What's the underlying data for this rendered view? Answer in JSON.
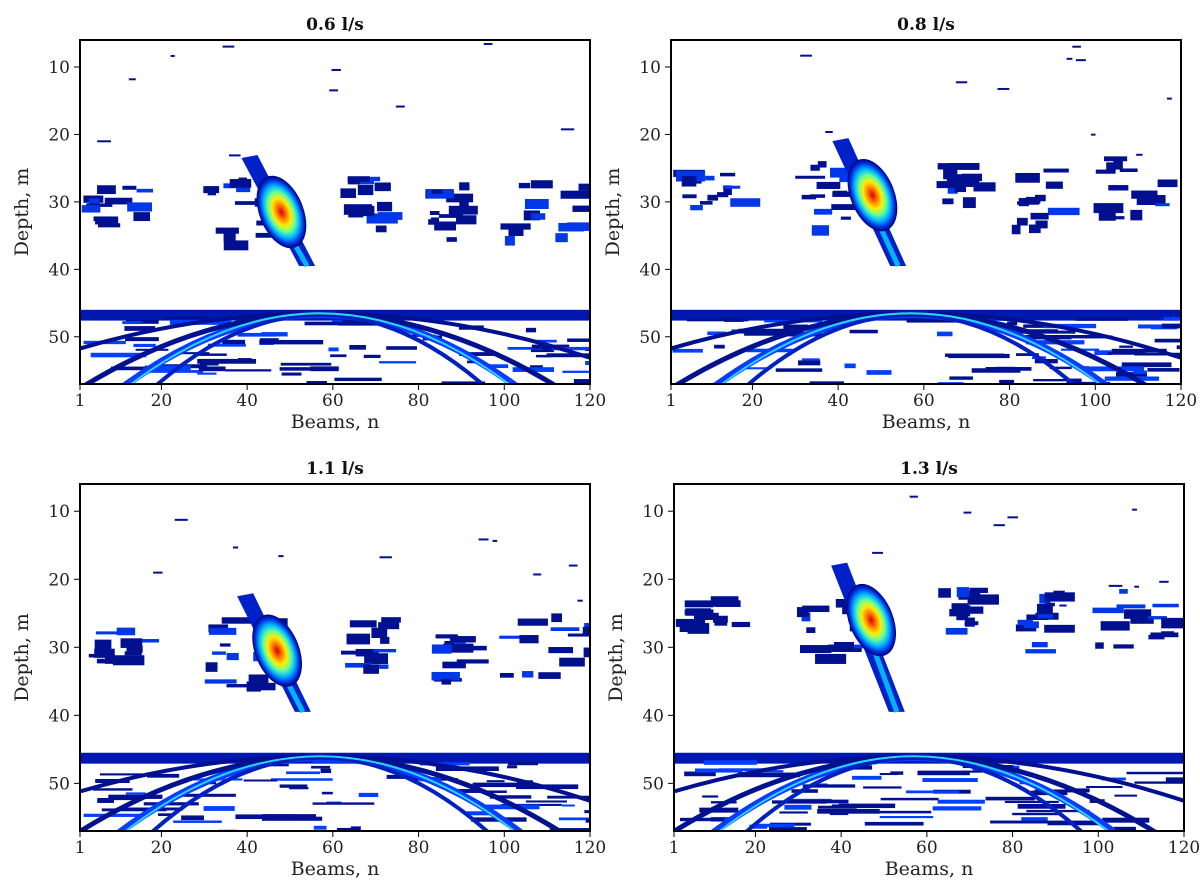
{
  "chart_data": [
    {
      "type": "heatmap",
      "title": "0.6 l/s",
      "xlabel": "Beams, n",
      "ylabel": "Depth, m",
      "x_ticks": [
        1,
        20,
        40,
        60,
        80,
        100,
        120
      ],
      "y_ticks": [
        10,
        20,
        30,
        40,
        50
      ],
      "xlim": [
        1,
        120
      ],
      "ylim": [
        57,
        6
      ],
      "colormap": [
        "#00008b",
        "#0044ff",
        "#00c8ff",
        "#7fff7f",
        "#ffff00",
        "#ff7f00",
        "#e00000"
      ],
      "hotspot": {
        "beam": 48,
        "depth": 31.5
      },
      "seabed_depth": 46
    },
    {
      "type": "heatmap",
      "title": "0.8 l/s",
      "xlabel": "Beams, n",
      "ylabel": "Depth, m",
      "x_ticks": [
        1,
        20,
        40,
        60,
        80,
        100,
        120
      ],
      "y_ticks": [
        10,
        20,
        30,
        40,
        50
      ],
      "xlim": [
        1,
        120
      ],
      "ylim": [
        57,
        6
      ],
      "colormap": [
        "#00008b",
        "#0044ff",
        "#00c8ff",
        "#7fff7f",
        "#ffff00",
        "#ff7f00",
        "#e00000"
      ],
      "hotspot": {
        "beam": 48,
        "depth": 29
      },
      "seabed_depth": 46
    },
    {
      "type": "heatmap",
      "title": "1.1 l/s",
      "xlabel": "Beams, n",
      "ylabel": "Depth, m",
      "x_ticks": [
        1,
        20,
        40,
        60,
        80,
        100,
        120
      ],
      "y_ticks": [
        10,
        20,
        30,
        40,
        50
      ],
      "xlim": [
        1,
        120
      ],
      "ylim": [
        57,
        6
      ],
      "colormap": [
        "#00008b",
        "#0044ff",
        "#00c8ff",
        "#7fff7f",
        "#ffff00",
        "#ff7f00",
        "#e00000"
      ],
      "hotspot": {
        "beam": 47,
        "depth": 30.5
      },
      "seabed_depth": 45.5
    },
    {
      "type": "heatmap",
      "title": "1.3 l/s",
      "xlabel": "Beams, n",
      "ylabel": "Depth, m",
      "x_ticks": [
        1,
        20,
        40,
        60,
        80,
        100,
        120
      ],
      "y_ticks": [
        10,
        20,
        30,
        40,
        50
      ],
      "xlim": [
        1,
        120
      ],
      "ylim": [
        57,
        6
      ],
      "colormap": [
        "#00008b",
        "#0044ff",
        "#00c8ff",
        "#7fff7f",
        "#ffff00",
        "#ff7f00",
        "#e00000"
      ],
      "hotspot": {
        "beam": 47,
        "depth": 26
      },
      "seabed_depth": 45.5
    }
  ]
}
